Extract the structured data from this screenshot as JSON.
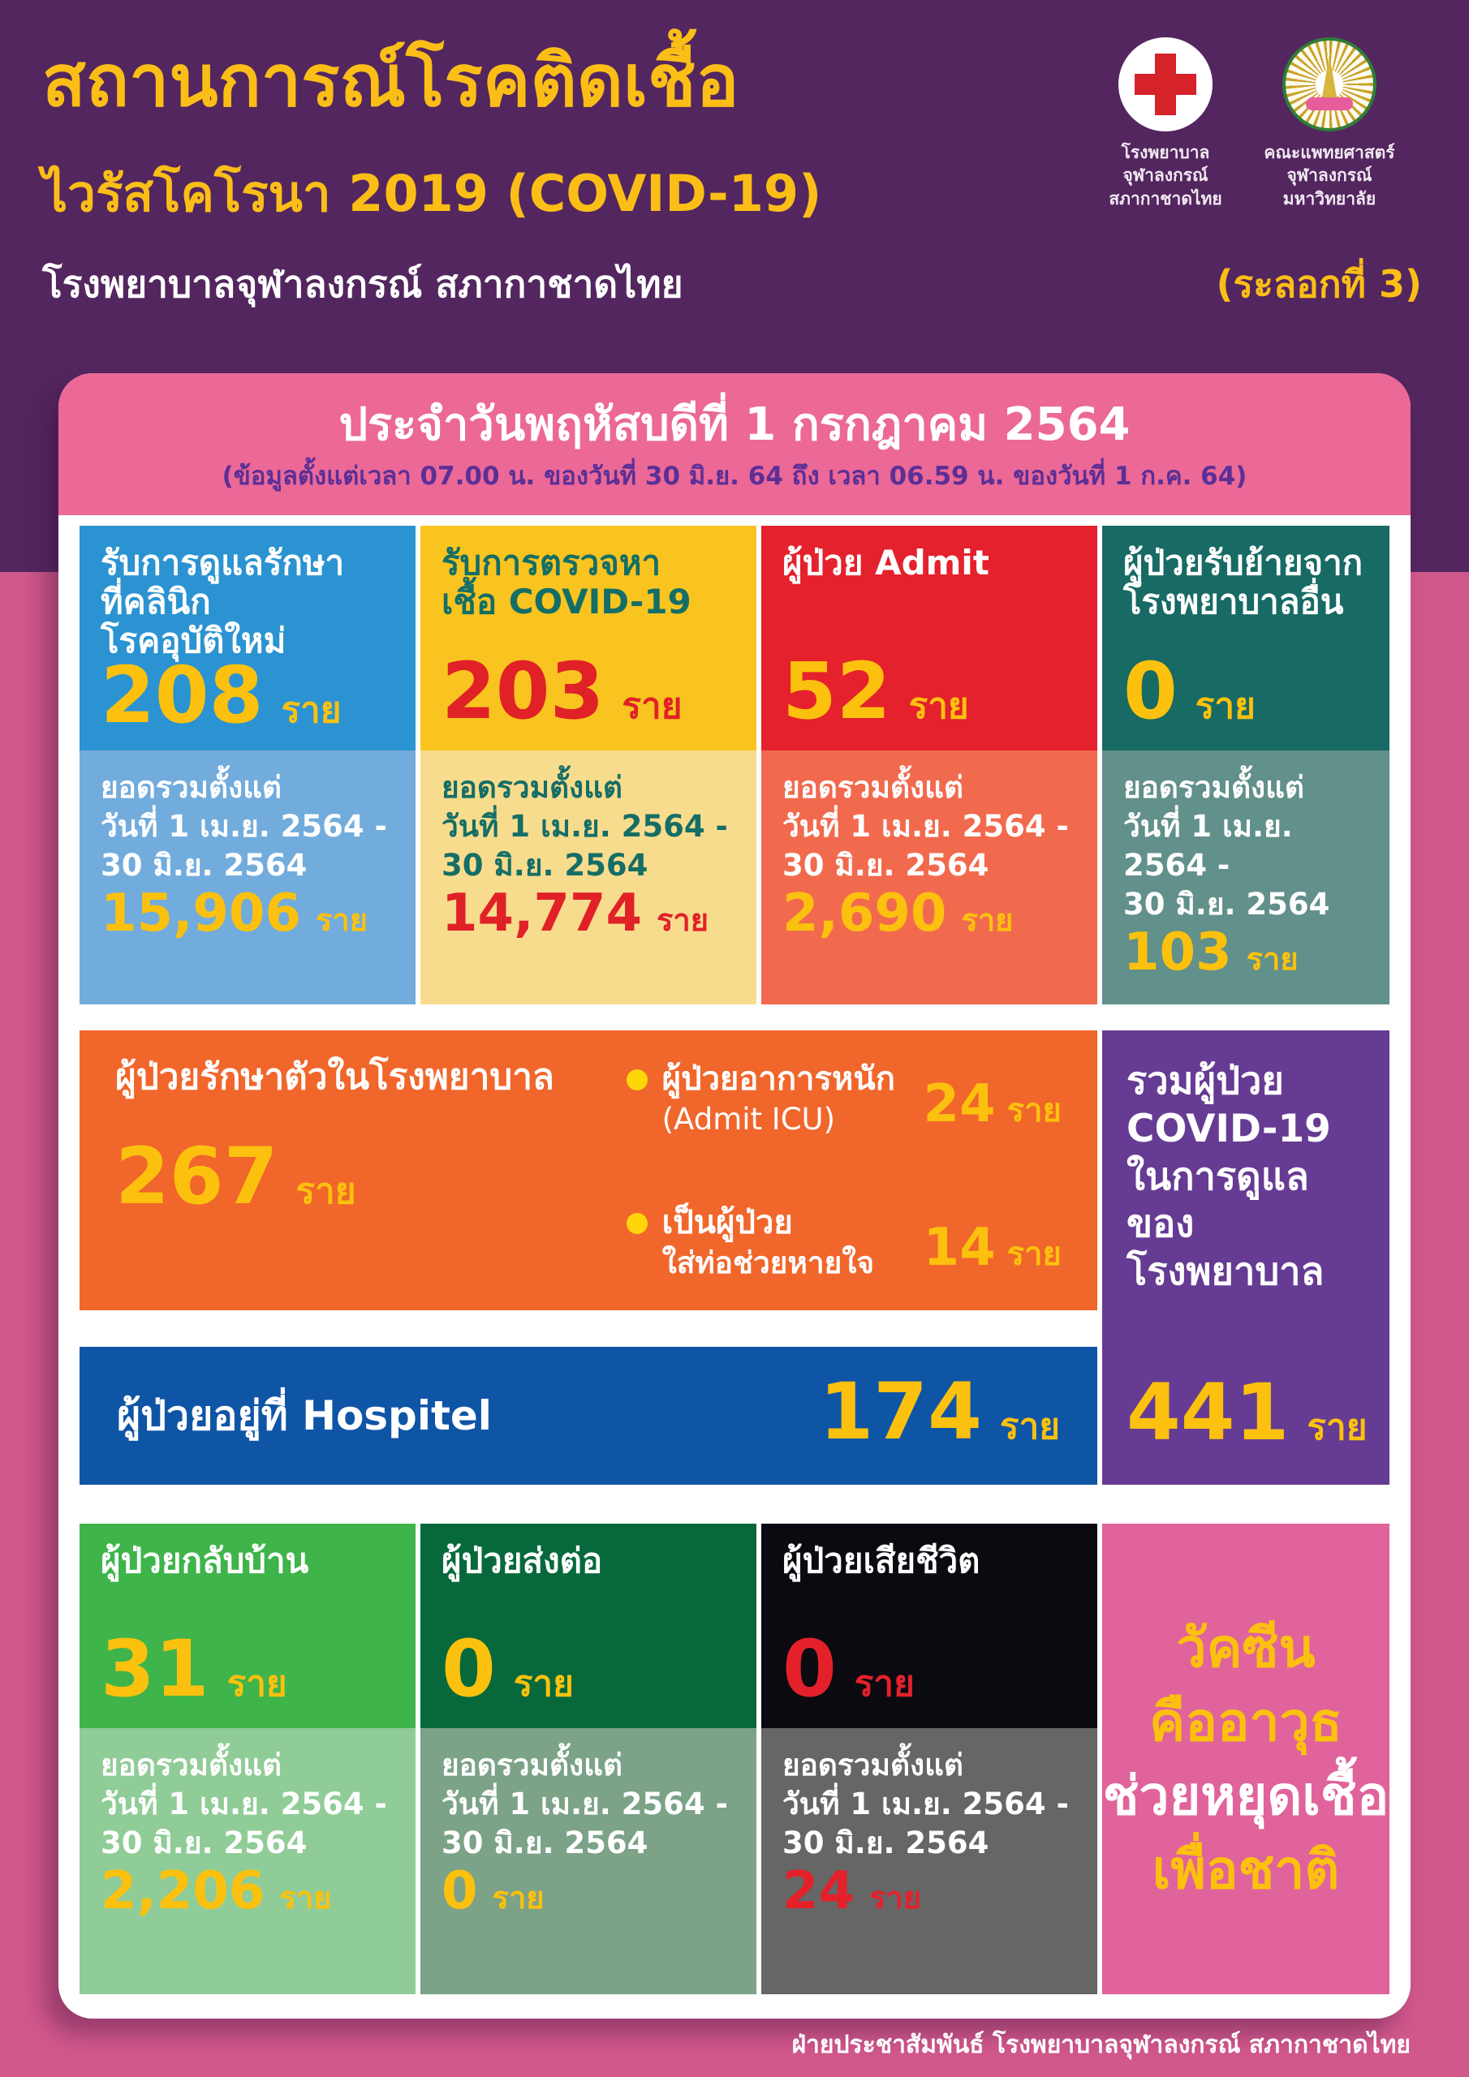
{
  "header": {
    "title_line1": "สถานการณ์โรคติดเชื้อ",
    "title_line2": "ไวรัสโคโรนา 2019 (COVID-19)",
    "subtitle": "โรงพยาบาลจุฬาลงกรณ์ สภากาชาดไทย",
    "wave_label": "(ระลอกที่ 3)",
    "colors": {
      "bg": "#53265F",
      "title_yellow": "#FBBE17",
      "subtitle_white": "#FFFFFF"
    },
    "logos": [
      {
        "icon": "red-cross-icon",
        "caption": "โรงพยาบาลจุฬาลงกรณ์\nสภากาชาดไทย"
      },
      {
        "icon": "faculty-of-medicine-emblem-icon",
        "caption": "คณะแพทยศาสตร์\nจุฬาลงกรณ์มหาวิทยาลัย"
      }
    ]
  },
  "banner": {
    "title": "ประจำวันพฤหัสบดีที่ 1 กรกฎาคม 2564",
    "note": "(ข้อมูลตั้งแต่เวลา 07.00 น. ของวันที่ 30 มิ.ย. 64 ถึง เวลา 06.59 น. ของวันที่ 1 ก.ค. 64)",
    "colors": {
      "bg": "#EB6897",
      "title": "#FFFFFF",
      "note": "#5B2F96"
    }
  },
  "unit_label": "ราย",
  "row1_cards": [
    {
      "title": "รับการดูแลรักษา\nที่คลินิก\nโรคอุบัติใหม่",
      "value": "208",
      "unit": "ราย",
      "cumulative_label": "ยอดรวมตั้งแต่\nวันที่ 1 เม.ย. 2564 -\n30 มิ.ย. 2564",
      "cumulative_value": "15,906",
      "colors": {
        "top": "#2B93D1",
        "bottom": "#72ACDC",
        "title": "#FFFFFF",
        "value": "#FCC10E",
        "label": "#FFFFFF",
        "cum": "#FCC10E"
      }
    },
    {
      "title": "รับการตรวจหา\nเชื้อ COVID-19",
      "value": "203",
      "unit": "ราย",
      "cumulative_label": "ยอดรวมตั้งแต่\nวันที่ 1 เม.ย. 2564 -\n30 มิ.ย. 2564",
      "cumulative_value": "14,774",
      "colors": {
        "top": "#F9C41F",
        "bottom": "#F8DC8D",
        "title": "#156E66",
        "value": "#E02127",
        "label": "#156E66",
        "cum": "#E02127"
      }
    },
    {
      "title": "ผู้ป่วย Admit",
      "value": "52",
      "unit": "ราย",
      "cumulative_label": "ยอดรวมตั้งแต่\nวันที่ 1 เม.ย. 2564 -\n30 มิ.ย. 2564",
      "cumulative_value": "2,690",
      "colors": {
        "top": "#E4212C",
        "bottom": "#F26A4E",
        "title": "#FFFFFF",
        "value": "#FCC10E",
        "label": "#FFFFFF",
        "cum": "#FCC10E"
      }
    },
    {
      "title": "ผู้ป่วยรับย้ายจาก\nโรงพยาบาลอื่น",
      "value": "0",
      "unit": "ราย",
      "cumulative_label": "ยอดรวมตั้งแต่\nวันที่ 1 เม.ย. 2564 -\n30 มิ.ย. 2564",
      "cumulative_value": "103",
      "colors": {
        "top": "#186A64",
        "bottom": "#62908A",
        "title": "#FFFFFF",
        "value": "#FCC10E",
        "label": "#FFFFFF",
        "cum": "#FCC10E"
      }
    }
  ],
  "inpatient_panel": {
    "title": "ผู้ป่วยรักษาตัวในโรงพยาบาล",
    "value": "267",
    "unit": "ราย",
    "bullets": [
      {
        "line1": "ผู้ป่วยอาการหนัก",
        "line2": "(Admit ICU)",
        "value": "24",
        "unit": "ราย"
      },
      {
        "line1": "เป็นผู้ป่วย",
        "line2": "ใส่ท่อช่วยหายใจ",
        "value": "14",
        "unit": "ราย"
      }
    ],
    "colors": {
      "bg": "#F1662B",
      "value": "#FCC10E",
      "dot": "#FFD60A",
      "text": "#FFFFFF"
    }
  },
  "hospitel_bar": {
    "label": "ผู้ป่วยอยู่ที่ Hospitel",
    "value": "174",
    "unit": "ราย",
    "colors": {
      "bg": "#0F55A6",
      "label": "#FFFFFF",
      "value": "#FCC10E"
    }
  },
  "total_card": {
    "title": "รวมผู้ป่วย\nCOVID-19\nในการดูแลของ\nโรงพยาบาล",
    "value": "441",
    "unit": "ราย",
    "colors": {
      "bg": "#663B93",
      "title": "#FFFFFF",
      "value": "#FCC10E"
    }
  },
  "row3_cards": [
    {
      "title": "ผู้ป่วยกลับบ้าน",
      "value": "31",
      "unit": "ราย",
      "cumulative_label": "ยอดรวมตั้งแต่\nวันที่ 1 เม.ย. 2564 -\n30 มิ.ย. 2564",
      "cumulative_value": "2,206",
      "colors": {
        "top": "#3EB44A",
        "bottom": "#90CC97",
        "title": "#FFFFFF",
        "value": "#FCC10E",
        "label": "#FFFFFF",
        "cum": "#FCC10E"
      }
    },
    {
      "title": "ผู้ป่วยส่งต่อ",
      "value": "0",
      "unit": "ราย",
      "cumulative_label": "ยอดรวมตั้งแต่\nวันที่ 1 เม.ย. 2564 -\n30 มิ.ย. 2564",
      "cumulative_value": "0",
      "colors": {
        "top": "#07693B",
        "bottom": "#7CA287",
        "title": "#FFFFFF",
        "value": "#FCC10E",
        "label": "#FFFFFF",
        "cum": "#FCC10E"
      }
    },
    {
      "title": "ผู้ป่วยเสียชีวิต",
      "value": "0",
      "unit": "ราย",
      "cumulative_label": "ยอดรวมตั้งแต่\nวันที่ 1 เม.ย. 2564 -\n30 มิ.ย. 2564",
      "cumulative_value": "24",
      "colors": {
        "top": "#0A0A10",
        "bottom": "#666666",
        "title": "#FFFFFF",
        "value": "#E4212B",
        "label": "#FFFFFF",
        "cum": "#E4212B"
      }
    }
  ],
  "vaccine_card": {
    "lines": [
      {
        "text": "วัคซีน",
        "color": "#FCC10E"
      },
      {
        "text": "คืออาวุธ",
        "color": "#FCC10E"
      },
      {
        "text": "ช่วยหยุดเชื้อ",
        "color": "#FFFFFF"
      },
      {
        "text": "เพื่อชาติ",
        "color": "#FCC10E"
      }
    ],
    "colors": {
      "bg": "#E0639B"
    }
  },
  "footer": {
    "text": "ฝ่ายประชาสัมพันธ์ โรงพยาบาลจุฬาลงกรณ์ สภากาชาดไทย"
  },
  "page_colors": {
    "background_top": "#53265F",
    "background_bottom": "#D1588B",
    "card_bg": "#FFFFFF"
  }
}
